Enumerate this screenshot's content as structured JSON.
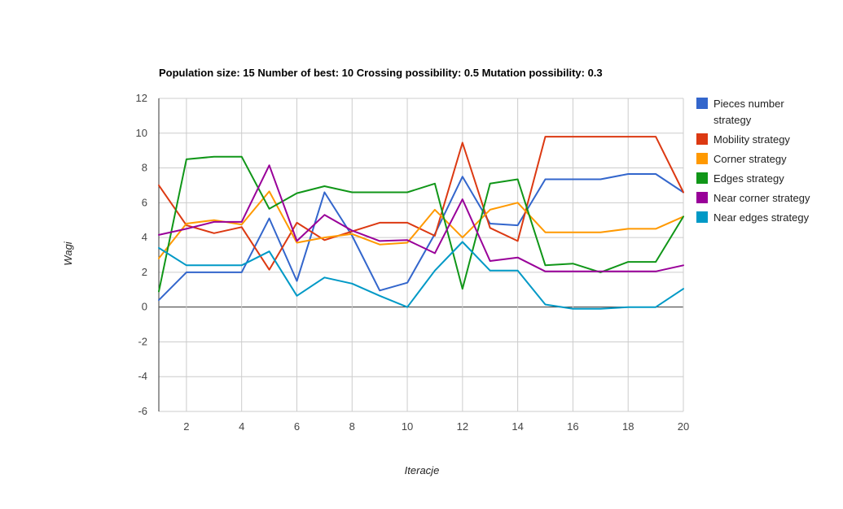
{
  "chart_data": {
    "type": "line",
    "title": "Population size: 15 Number of best: 10 Crossing possibility: 0.5 Mutation possibility: 0.3",
    "xlabel": "Iteracje",
    "ylabel": "Wagi",
    "xlim": [
      1,
      20
    ],
    "ylim": [
      -6,
      12
    ],
    "x": [
      1,
      2,
      3,
      4,
      5,
      6,
      7,
      8,
      9,
      10,
      11,
      12,
      13,
      14,
      15,
      16,
      17,
      18,
      19,
      20
    ],
    "x_ticks": [
      2,
      4,
      6,
      8,
      10,
      12,
      14,
      16,
      18,
      20
    ],
    "y_ticks": [
      -6,
      -4,
      -2,
      0,
      2,
      4,
      6,
      8,
      10,
      12
    ],
    "grid": true,
    "legend_position": "right",
    "series": [
      {
        "name": "Pieces number strategy",
        "legend_lines": [
          "Pieces number",
          "strategy"
        ],
        "color": "#3366cc",
        "values": [
          0.4,
          2.0,
          2.0,
          2.0,
          5.1,
          1.5,
          6.6,
          4.1,
          0.95,
          1.4,
          4.2,
          7.5,
          4.8,
          4.7,
          7.35,
          7.35,
          7.35,
          7.65,
          7.65,
          6.6
        ]
      },
      {
        "name": "Mobility strategy",
        "legend_lines": [
          "Mobility strategy"
        ],
        "color": "#dc3912",
        "values": [
          7.0,
          4.7,
          4.25,
          4.6,
          2.15,
          4.85,
          3.85,
          4.35,
          4.85,
          4.85,
          4.1,
          9.45,
          4.55,
          3.8,
          9.8,
          9.8,
          9.8,
          9.8,
          9.8,
          6.6
        ]
      },
      {
        "name": "Corner strategy",
        "legend_lines": [
          "Corner strategy"
        ],
        "color": "#ff9900",
        "values": [
          2.8,
          4.8,
          5.0,
          4.75,
          6.65,
          3.7,
          4.0,
          4.2,
          3.6,
          3.7,
          5.6,
          4.0,
          5.6,
          6.0,
          4.3,
          4.3,
          4.3,
          4.5,
          4.5,
          5.2
        ]
      },
      {
        "name": "Edges strategy",
        "legend_lines": [
          "Edges strategy"
        ],
        "color": "#109618",
        "values": [
          0.9,
          8.5,
          8.65,
          8.65,
          5.65,
          6.55,
          6.95,
          6.6,
          6.6,
          6.6,
          7.1,
          1.05,
          7.1,
          7.35,
          2.4,
          2.5,
          2.0,
          2.6,
          2.6,
          5.2
        ]
      },
      {
        "name": "Near corner strategy",
        "legend_lines": [
          "Near corner strategy"
        ],
        "color": "#990099",
        "values": [
          4.15,
          4.5,
          4.9,
          4.9,
          8.15,
          3.8,
          5.3,
          4.4,
          3.8,
          3.85,
          3.1,
          6.2,
          2.65,
          2.85,
          2.05,
          2.05,
          2.05,
          2.05,
          2.05,
          2.4
        ]
      },
      {
        "name": "Near edges strategy",
        "legend_lines": [
          "Near edges strategy"
        ],
        "color": "#0099c6",
        "values": [
          3.4,
          2.4,
          2.4,
          2.4,
          3.2,
          0.65,
          1.7,
          1.35,
          0.65,
          0.0,
          2.1,
          3.75,
          2.1,
          2.1,
          0.15,
          -0.1,
          -0.1,
          0.0,
          0.0,
          1.05
        ]
      }
    ]
  }
}
